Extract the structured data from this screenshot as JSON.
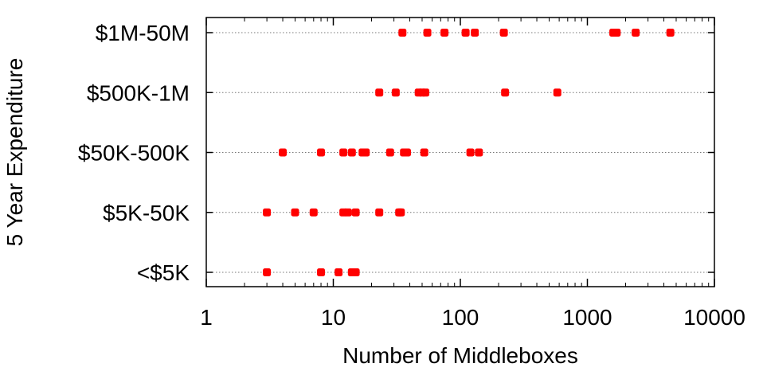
{
  "chart_data": {
    "type": "scatter",
    "xlabel": "Number of Middleboxes",
    "ylabel": "5 Year Expenditure",
    "xscale": "log",
    "xlim": [
      1,
      10000
    ],
    "x_ticks": [
      "1",
      "10",
      "100",
      "1000",
      "10000"
    ],
    "categories": [
      "<$5K",
      "$5K-50K",
      "$50K-500K",
      "$500K-1M",
      "$1M-50M"
    ],
    "grid": "horizontal dotted",
    "marker_color": "#ff0000",
    "points": [
      {
        "category": "$1M-50M",
        "x": [
          35,
          55,
          75,
          110,
          130,
          220,
          1600,
          1700,
          2400,
          4500
        ]
      },
      {
        "category": "$500K-1M",
        "x": [
          23,
          31,
          47,
          50,
          53,
          225,
          580
        ]
      },
      {
        "category": "$50K-500K",
        "x": [
          4,
          8,
          12,
          14,
          17,
          18,
          28,
          36,
          38,
          52,
          120,
          140
        ]
      },
      {
        "category": "$5K-50K",
        "x": [
          3,
          5,
          7,
          12,
          13,
          15,
          23,
          33,
          34
        ]
      },
      {
        "category": "<$5K",
        "x": [
          3,
          8,
          11,
          14,
          15
        ]
      }
    ]
  }
}
